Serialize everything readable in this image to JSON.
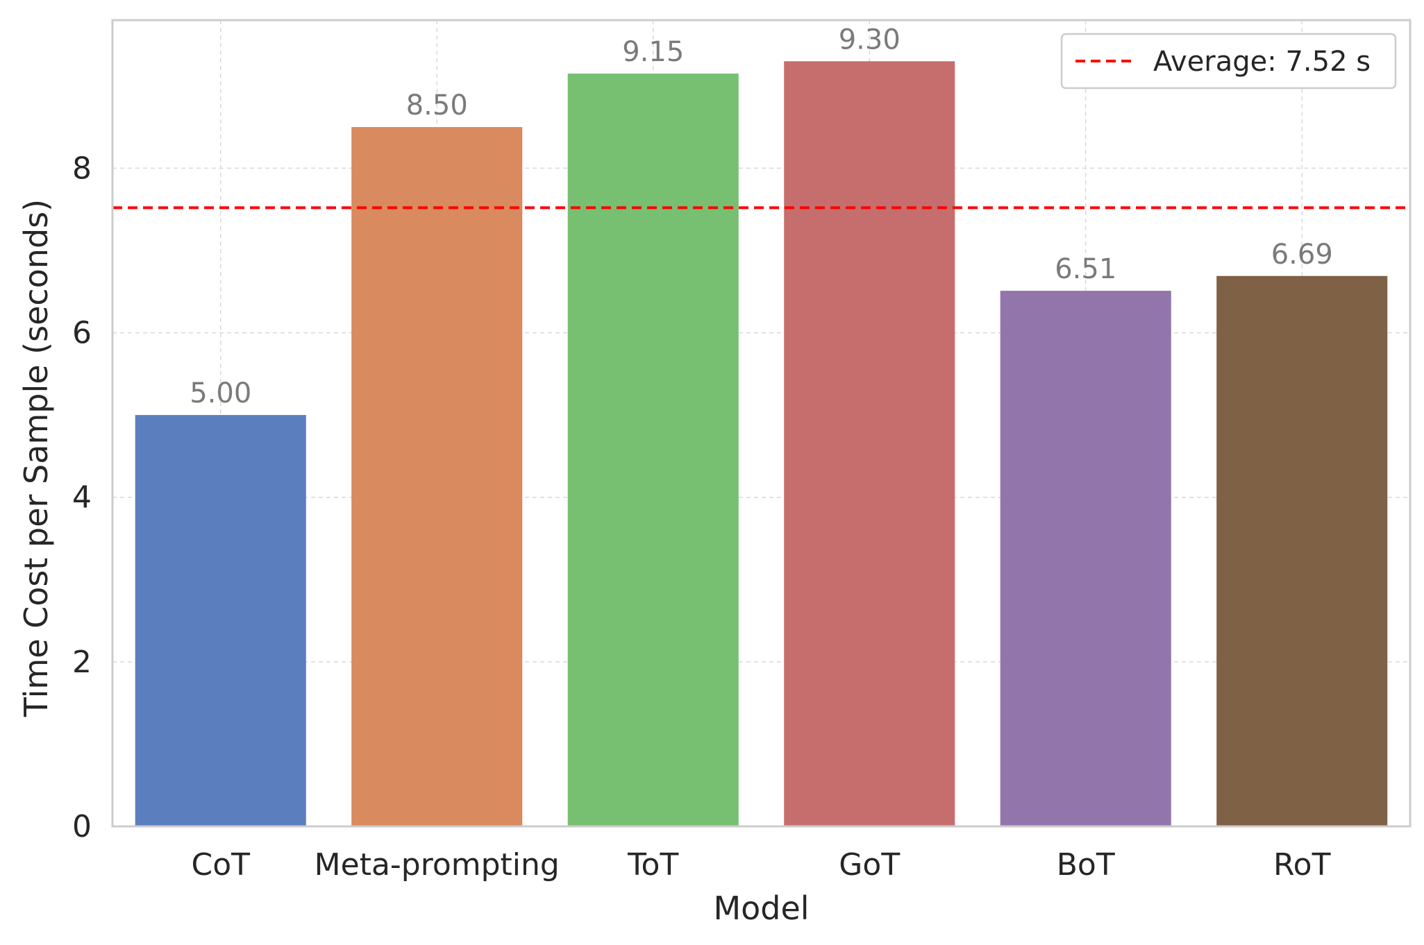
{
  "chart_data": {
    "type": "bar",
    "title": "",
    "xlabel": "Model",
    "ylabel": "Time Cost per Sample (seconds)",
    "categories": [
      "CoT",
      "Meta-prompting",
      "ToT",
      "GoT",
      "BoT",
      "RoT"
    ],
    "values": [
      5.0,
      8.5,
      9.15,
      9.3,
      6.51,
      6.69
    ],
    "value_labels": [
      "5.00",
      "8.50",
      "9.15",
      "9.30",
      "6.51",
      "6.69"
    ],
    "bar_colors": [
      "#5b7ebf",
      "#d98a5e",
      "#77bf71",
      "#c66e6d",
      "#9275ab",
      "#7f6146"
    ],
    "ylim": [
      0,
      9.8
    ],
    "yticks": [
      0,
      2,
      4,
      6,
      8
    ],
    "ytick_labels": [
      "0",
      "2",
      "4",
      "6",
      "8"
    ],
    "grid": true,
    "average": {
      "value": 7.52,
      "label": "Average: 7.52 s",
      "color": "#ff0000"
    },
    "legend_position": "top-right"
  }
}
